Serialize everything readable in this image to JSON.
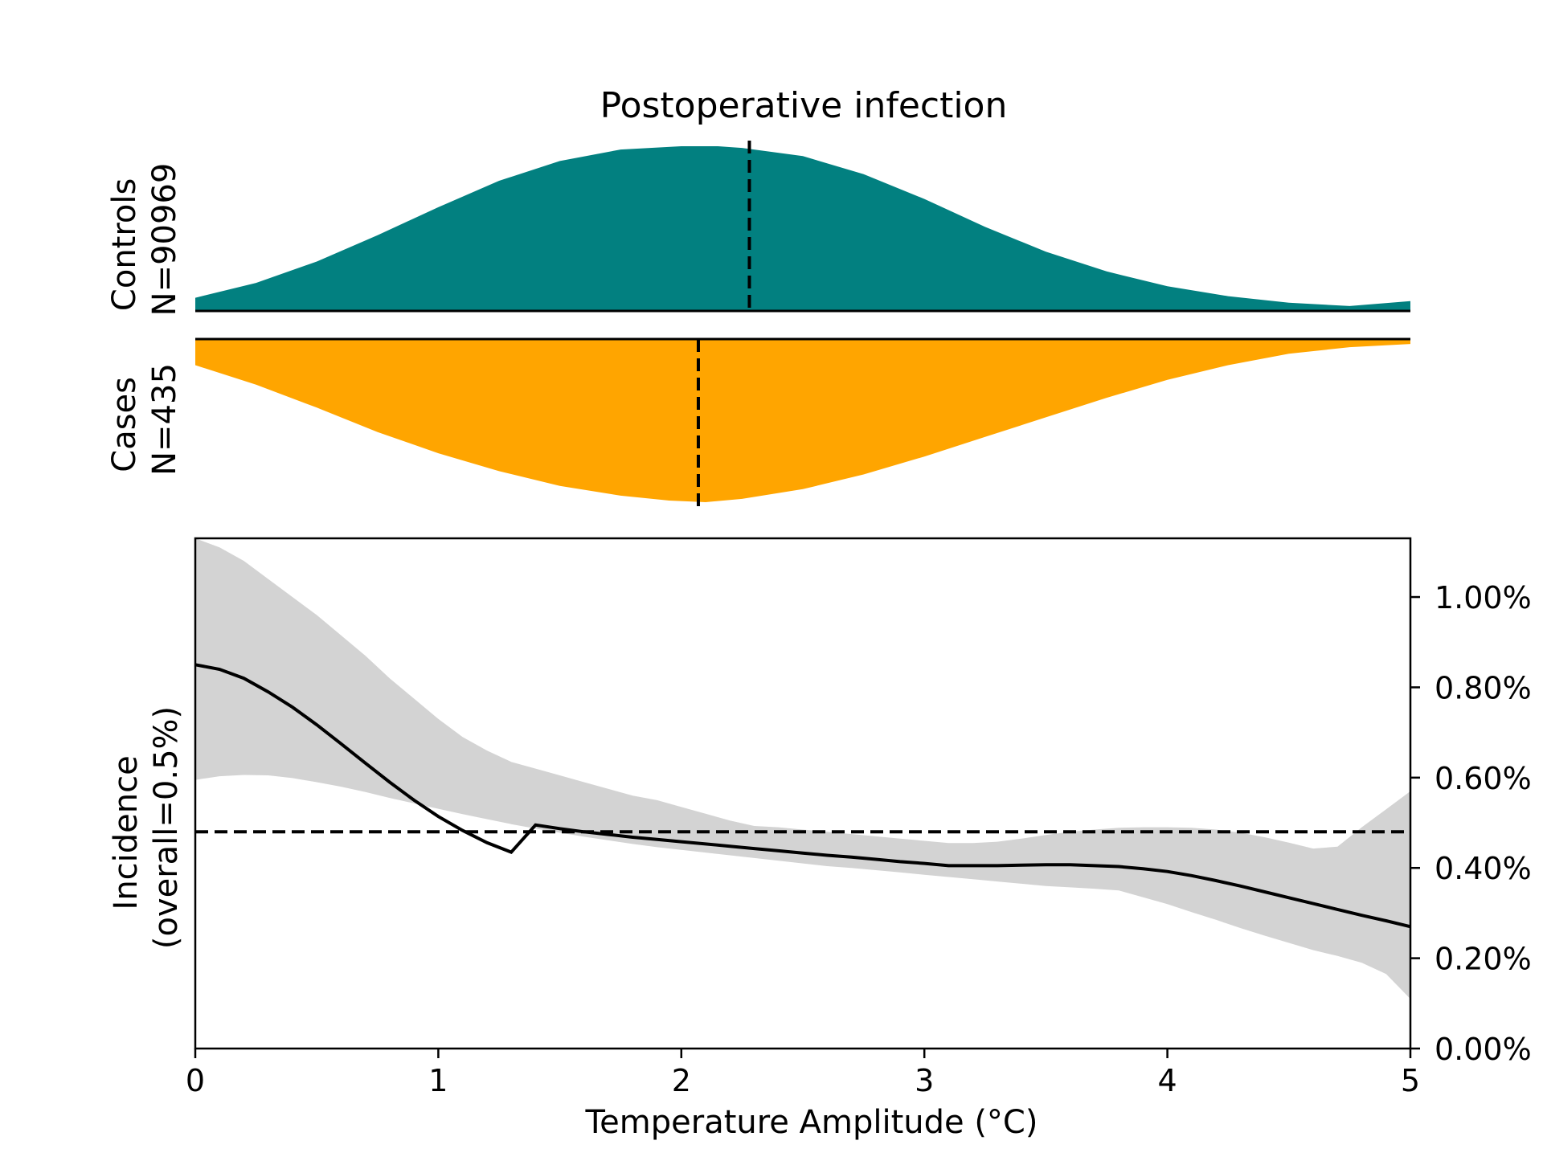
{
  "title": "Postoperative infection",
  "chart_data": [
    {
      "type": "area",
      "panel": "controls-density",
      "label_line1": "Controls",
      "label_line2": "N=90969",
      "color": "#028080",
      "x": [
        0,
        0.25,
        0.5,
        0.75,
        1.0,
        1.25,
        1.5,
        1.75,
        2.0,
        2.15,
        2.25,
        2.5,
        2.75,
        3.0,
        3.25,
        3.5,
        3.75,
        4.0,
        4.25,
        4.5,
        4.75,
        5.0
      ],
      "density": [
        0.08,
        0.17,
        0.3,
        0.46,
        0.63,
        0.79,
        0.91,
        0.98,
        1.0,
        1.0,
        0.99,
        0.94,
        0.83,
        0.68,
        0.51,
        0.36,
        0.24,
        0.15,
        0.09,
        0.05,
        0.03,
        0.06
      ],
      "median": 2.28,
      "xlim": [
        0,
        5
      ]
    },
    {
      "type": "area",
      "panel": "cases-density",
      "label_line1": "Cases",
      "label_line2": "N=435",
      "color": "#ffa500",
      "x": [
        0,
        0.25,
        0.5,
        0.75,
        1.0,
        1.25,
        1.5,
        1.75,
        1.95,
        2.1,
        2.25,
        2.5,
        2.75,
        3.0,
        3.25,
        3.5,
        3.75,
        4.0,
        4.25,
        4.5,
        4.75,
        5.0
      ],
      "density": [
        0.16,
        0.28,
        0.42,
        0.57,
        0.7,
        0.81,
        0.9,
        0.96,
        0.99,
        1.0,
        0.98,
        0.92,
        0.83,
        0.72,
        0.6,
        0.48,
        0.36,
        0.25,
        0.16,
        0.09,
        0.05,
        0.03
      ],
      "median": 2.07,
      "xlim": [
        0,
        5
      ]
    },
    {
      "type": "line",
      "panel": "incidence",
      "xlabel": "Temperature Amplitude (°C)",
      "ylabel_line1": "Incidence",
      "ylabel_line2": "(overall=0.5%)",
      "xlim": [
        0,
        5
      ],
      "ylim": [
        0,
        1.13
      ],
      "xticks": [
        0,
        1,
        2,
        3,
        4,
        5
      ],
      "xtick_labels": [
        "0",
        "1",
        "2",
        "3",
        "4",
        "5"
      ],
      "yticks": [
        0,
        0.2,
        0.4,
        0.6,
        0.8,
        1.0
      ],
      "ytick_labels": [
        "0.00%",
        "0.20%",
        "0.40%",
        "0.60%",
        "0.80%",
        "1.00%"
      ],
      "y_axis_side": "right",
      "reference_line": 0.48,
      "band_color": "#d3d3d3",
      "x": [
        0,
        0.1,
        0.2,
        0.3,
        0.4,
        0.5,
        0.6,
        0.7,
        0.8,
        0.9,
        1.0,
        1.1,
        1.2,
        1.3,
        1.4,
        1.5,
        1.6,
        1.7,
        1.8,
        1.9,
        2.0,
        2.1,
        2.2,
        2.3,
        2.4,
        2.5,
        2.6,
        2.7,
        2.8,
        2.9,
        3.0,
        3.1,
        3.2,
        3.3,
        3.4,
        3.5,
        3.6,
        3.7,
        3.8,
        3.9,
        4.0,
        4.1,
        4.2,
        4.3,
        4.4,
        4.5,
        4.6,
        4.7,
        4.8,
        4.9,
        5.0
      ],
      "mean": [
        0.85,
        0.84,
        0.82,
        0.79,
        0.756,
        0.717,
        0.675,
        0.632,
        0.59,
        0.55,
        0.514,
        0.483,
        0.456,
        0.435,
        0.495,
        0.487,
        0.48,
        0.474,
        0.468,
        0.463,
        0.458,
        0.453,
        0.448,
        0.443,
        0.438,
        0.433,
        0.428,
        0.424,
        0.419,
        0.414,
        0.41,
        0.405,
        0.405,
        0.405,
        0.406,
        0.407,
        0.407,
        0.405,
        0.403,
        0.398,
        0.392,
        0.383,
        0.372,
        0.36,
        0.347,
        0.334,
        0.321,
        0.308,
        0.295,
        0.283,
        0.27
      ],
      "upper": [
        1.14,
        1.11,
        1.08,
        1.04,
        1.0,
        0.96,
        0.915,
        0.87,
        0.82,
        0.775,
        0.73,
        0.69,
        0.66,
        0.635,
        0.62,
        0.605,
        0.59,
        0.575,
        0.56,
        0.55,
        0.535,
        0.52,
        0.505,
        0.493,
        0.49,
        0.485,
        0.48,
        0.475,
        0.47,
        0.465,
        0.46,
        0.455,
        0.455,
        0.458,
        0.465,
        0.473,
        0.48,
        0.485,
        0.489,
        0.49,
        0.49,
        0.489,
        0.485,
        0.478,
        0.468,
        0.456,
        0.443,
        0.447,
        0.49,
        0.53,
        0.57
      ],
      "lower": [
        0.595,
        0.603,
        0.606,
        0.605,
        0.599,
        0.59,
        0.58,
        0.568,
        0.555,
        0.543,
        0.531,
        0.519,
        0.508,
        0.497,
        0.487,
        0.478,
        0.469,
        0.461,
        0.453,
        0.446,
        0.44,
        0.434,
        0.428,
        0.422,
        0.416,
        0.41,
        0.404,
        0.4,
        0.395,
        0.39,
        0.385,
        0.38,
        0.375,
        0.37,
        0.365,
        0.36,
        0.357,
        0.354,
        0.35,
        0.335,
        0.32,
        0.302,
        0.285,
        0.267,
        0.25,
        0.234,
        0.218,
        0.205,
        0.19,
        0.165,
        0.11
      ]
    }
  ]
}
